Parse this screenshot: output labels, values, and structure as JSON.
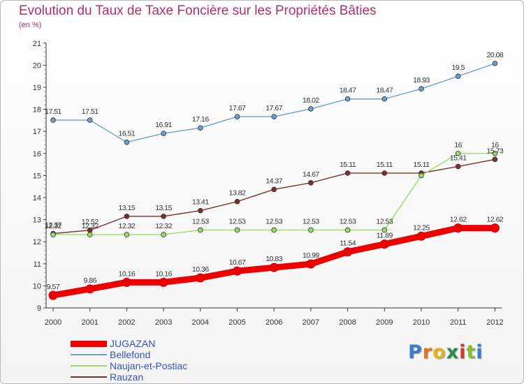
{
  "title": "Evolution du Taux de Taxe Foncière sur les Propriétés Bâties",
  "subtitle": "(en %)",
  "brand": {
    "letters": [
      "P",
      "r",
      "o",
      "x",
      "i",
      "t",
      "i"
    ],
    "colors": [
      "#3a7ecb",
      "#e8731f",
      "#e3b320",
      "#2c8a4a",
      "#d43a2a",
      "#8dbd2e",
      "#3a7ecb"
    ]
  },
  "chart_data": {
    "type": "line",
    "title": "Evolution du Taux de Taxe Foncière sur les Propriétés Bâties",
    "ylabel": "(en %)",
    "xlabel": "",
    "x": [
      "2000",
      "2001",
      "2002",
      "2003",
      "2004",
      "2005",
      "2006",
      "2007",
      "2008",
      "2009",
      "2010",
      "2011",
      "2012"
    ],
    "ylim": [
      9,
      21
    ],
    "yticks": [
      "9",
      "10",
      "11",
      "12",
      "13",
      "14",
      "15",
      "16",
      "17",
      "18",
      "19",
      "20",
      "21"
    ],
    "grid": false,
    "legend": "bottom-left",
    "series": [
      {
        "name": "JUGAZAN",
        "color": "#ee0000",
        "values": [
          9.57,
          9.86,
          10.16,
          10.16,
          10.36,
          10.67,
          10.83,
          10.99,
          11.54,
          11.89,
          12.25,
          12.62,
          12.62
        ],
        "labels": [
          "9.57",
          "9.86",
          "10.16",
          "10.16",
          "10.36",
          "10.67",
          "10.83",
          "10.99",
          "11.54",
          "11.89",
          "12.25",
          "12.62",
          "12.62"
        ]
      },
      {
        "name": "Bellefond",
        "color": "#6a9fd0",
        "values": [
          17.51,
          17.51,
          16.51,
          16.91,
          17.16,
          17.67,
          17.67,
          18.02,
          18.47,
          18.47,
          18.93,
          19.5,
          20.08
        ],
        "labels": [
          "17.51",
          "17.51",
          "16.51",
          "16.91",
          "17.16",
          "17.67",
          "17.67",
          "18.02",
          "18.47",
          "18.47",
          "18.93",
          "19.5",
          "20.08"
        ]
      },
      {
        "name": "Naujan-et-Postiac",
        "color": "#99dd66",
        "values": [
          12.32,
          12.32,
          12.32,
          12.32,
          12.53,
          12.53,
          12.53,
          12.53,
          12.53,
          12.53,
          15.0,
          16.0,
          16.0
        ],
        "labels": [
          "12.32",
          "12.32",
          "12.32",
          "12.32",
          "12.53",
          "12.53",
          "12.53",
          "12.53",
          "12.53",
          "12.53",
          "",
          "16",
          "16"
        ]
      },
      {
        "name": "Rauzan",
        "color": "#7a3030",
        "values": [
          12.37,
          12.52,
          13.15,
          13.15,
          13.41,
          13.82,
          14.37,
          14.67,
          15.11,
          15.11,
          15.11,
          15.41,
          15.73
        ],
        "labels": [
          "12.37",
          "12.52",
          "13.15",
          "13.15",
          "13.41",
          "13.82",
          "14.37",
          "14.67",
          "15.11",
          "15.11",
          "15.11",
          "15.41",
          "15.73"
        ]
      }
    ]
  }
}
